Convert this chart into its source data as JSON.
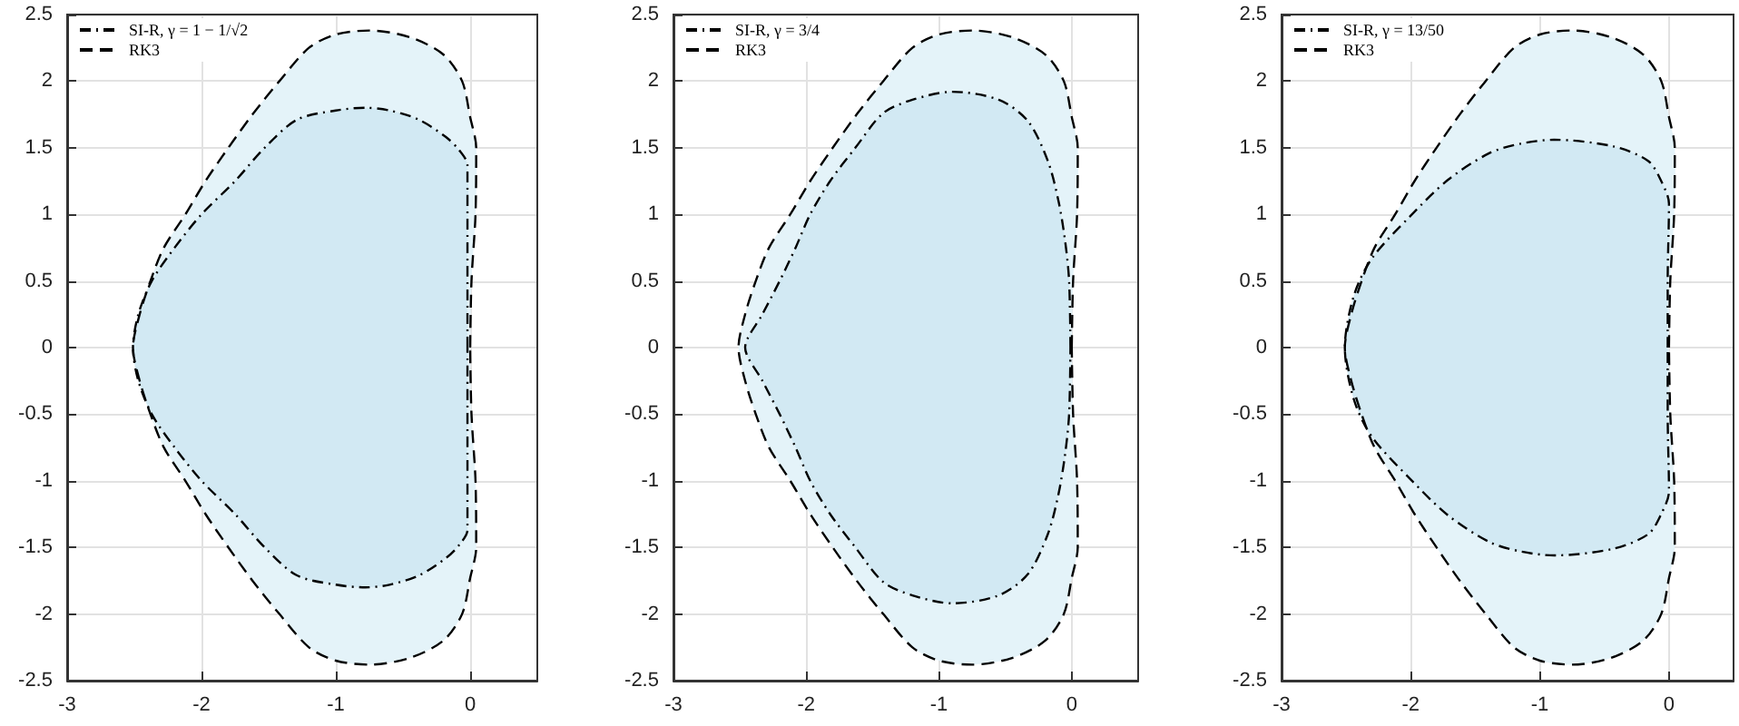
{
  "chart_data": [
    {
      "type": "line",
      "xlim": [
        -3,
        0.5
      ],
      "ylim": [
        -2.5,
        2.5
      ],
      "xticks": [
        -3,
        -2,
        -1,
        0
      ],
      "yticks": [
        -2.5,
        -2,
        -1.5,
        -1,
        -0.5,
        0,
        0.5,
        1,
        1.5,
        2,
        2.5
      ],
      "grid": true,
      "legend": "top left",
      "series": [
        {
          "name": "SI-R, γ = 1 − 1/√2",
          "type": "area",
          "color": "#d2e9f3",
          "line_style": "dashdot",
          "x": [
            -0.02,
            -0.02,
            -0.02,
            -0.08,
            -0.18,
            -0.38,
            -0.6,
            -0.78,
            -1.0,
            -1.29,
            -1.53,
            -1.75,
            -2.0,
            -2.2,
            -2.37,
            -2.47,
            -2.51,
            -2.47,
            -2.37,
            -2.2,
            -2.0,
            -1.75,
            -1.53,
            -1.29,
            -1.0,
            -0.78,
            -0.6,
            -0.38,
            -0.18,
            -0.08,
            -0.02,
            -0.02,
            -0.02
          ],
          "values": [
            0,
            0.7,
            1.37,
            1.48,
            1.58,
            1.71,
            1.78,
            1.8,
            1.78,
            1.71,
            1.5,
            1.25,
            1,
            0.75,
            0.5,
            0.25,
            0,
            -0.25,
            -0.5,
            -0.75,
            -1,
            -1.25,
            -1.5,
            -1.71,
            -1.78,
            -1.8,
            -1.78,
            -1.71,
            -1.58,
            -1.48,
            -1.37,
            -0.7,
            0
          ]
        },
        {
          "name": "RK3",
          "type": "area",
          "color": "#e4f3f9",
          "line_style": "dashed",
          "x": [
            0,
            0.01,
            0.04,
            0.045,
            0,
            -0.06,
            -0.2,
            -0.45,
            -0.75,
            -1.0,
            -1.2,
            -1.42,
            -1.62,
            -1.8,
            -1.97,
            -2.12,
            -2.28,
            -2.38,
            -2.46,
            -2.51,
            -2.46,
            -2.38,
            -2.28,
            -2.12,
            -1.97,
            -1.8,
            -1.62,
            -1.42,
            -1.2,
            -1.0,
            -0.75,
            -0.45,
            -0.2,
            -0.06,
            0,
            0.045,
            0.04,
            0.01,
            0
          ],
          "values": [
            0,
            0.5,
            1,
            1.5,
            1.73,
            2,
            2.2,
            2.33,
            2.38,
            2.35,
            2.25,
            2,
            1.75,
            1.5,
            1.25,
            1,
            0.75,
            0.5,
            0.25,
            0,
            -0.25,
            -0.5,
            -0.75,
            -1,
            -1.25,
            -1.5,
            -1.75,
            -2,
            -2.25,
            -2.35,
            -2.38,
            -2.33,
            -2.2,
            -2,
            -1.73,
            -1.5,
            -1,
            -0.5,
            0
          ]
        }
      ]
    },
    {
      "type": "line",
      "xlim": [
        -3,
        0.5
      ],
      "ylim": [
        -2.5,
        2.5
      ],
      "xticks": [
        -3,
        -2,
        -1,
        0
      ],
      "yticks": [
        -2.5,
        -2,
        -1.5,
        -1,
        -0.5,
        0,
        0.5,
        1,
        1.5,
        2,
        2.5
      ],
      "grid": true,
      "legend": "top left",
      "series": [
        {
          "name": "SI-R, γ = 3/4",
          "type": "area",
          "color": "#d2e9f3",
          "line_style": "dashdot",
          "x": [
            -0.01,
            -0.02,
            -0.05,
            -0.1,
            -0.18,
            -0.33,
            -0.55,
            -0.9,
            -1.2,
            -1.42,
            -1.63,
            -1.82,
            -1.97,
            -2.08,
            -2.2,
            -2.33,
            -2.46,
            -2.33,
            -2.2,
            -2.08,
            -1.97,
            -1.82,
            -1.63,
            -1.42,
            -1.2,
            -0.9,
            -0.55,
            -0.33,
            -0.18,
            -0.1,
            -0.05,
            -0.02,
            -0.01
          ],
          "values": [
            0,
            0.5,
            0.8,
            1.1,
            1.4,
            1.7,
            1.86,
            1.92,
            1.86,
            1.76,
            1.5,
            1.25,
            1,
            0.75,
            0.5,
            0.25,
            0,
            -0.25,
            -0.5,
            -0.75,
            -1,
            -1.25,
            -1.5,
            -1.76,
            -1.86,
            -1.92,
            -1.86,
            -1.7,
            -1.4,
            -1.1,
            -0.8,
            -0.5,
            0
          ]
        },
        {
          "name": "RK3",
          "type": "area",
          "color": "#e4f3f9",
          "line_style": "dashed",
          "x": [
            0,
            0.01,
            0.04,
            0.045,
            0,
            -0.06,
            -0.2,
            -0.45,
            -0.75,
            -1.0,
            -1.2,
            -1.42,
            -1.62,
            -1.8,
            -1.97,
            -2.12,
            -2.28,
            -2.38,
            -2.46,
            -2.51,
            -2.46,
            -2.38,
            -2.28,
            -2.12,
            -1.97,
            -1.8,
            -1.62,
            -1.42,
            -1.2,
            -1.0,
            -0.75,
            -0.45,
            -0.2,
            -0.06,
            0,
            0.045,
            0.04,
            0.01,
            0
          ],
          "values": [
            0,
            0.5,
            1,
            1.5,
            1.73,
            2,
            2.2,
            2.33,
            2.38,
            2.35,
            2.25,
            2,
            1.75,
            1.5,
            1.25,
            1,
            0.75,
            0.5,
            0.25,
            0,
            -0.25,
            -0.5,
            -0.75,
            -1,
            -1.25,
            -1.5,
            -1.75,
            -2,
            -2.25,
            -2.35,
            -2.38,
            -2.33,
            -2.2,
            -2,
            -1.73,
            -1.5,
            -1,
            -0.5,
            0
          ]
        }
      ]
    },
    {
      "type": "line",
      "xlim": [
        -3,
        0.5
      ],
      "ylim": [
        -2.5,
        2.5
      ],
      "xticks": [
        -3,
        -2,
        -1,
        0
      ],
      "yticks": [
        -2.5,
        -2,
        -1.5,
        -1,
        -0.5,
        0,
        0.5,
        1,
        1.5,
        2,
        2.5
      ],
      "grid": true,
      "legend": "top left",
      "series": [
        {
          "name": "SI-R, γ = 13/50",
          "type": "area",
          "color": "#d2e9f3",
          "line_style": "dashdot",
          "x": [
            -0.01,
            -0.01,
            0,
            -0.06,
            -0.16,
            -0.43,
            -0.89,
            -1.15,
            -1.39,
            -1.71,
            -2.0,
            -2.3,
            -2.44,
            -2.51,
            -2.44,
            -2.3,
            -2.0,
            -1.71,
            -1.39,
            -1.15,
            -0.89,
            -0.43,
            -0.16,
            -0.06,
            0,
            -0.01,
            -0.01
          ],
          "values": [
            0,
            0.5,
            1.08,
            1.25,
            1.4,
            1.51,
            1.56,
            1.53,
            1.46,
            1.26,
            0.99,
            0.67,
            0.39,
            0,
            -0.39,
            -0.67,
            -0.99,
            -1.26,
            -1.46,
            -1.53,
            -1.56,
            -1.51,
            -1.4,
            -1.25,
            -1.08,
            -0.5,
            0
          ]
        },
        {
          "name": "RK3",
          "type": "area",
          "color": "#e4f3f9",
          "line_style": "dashed",
          "x": [
            0,
            0.01,
            0.04,
            0.045,
            0,
            -0.06,
            -0.2,
            -0.45,
            -0.75,
            -1.0,
            -1.2,
            -1.42,
            -1.62,
            -1.8,
            -1.97,
            -2.12,
            -2.28,
            -2.38,
            -2.46,
            -2.51,
            -2.46,
            -2.38,
            -2.28,
            -2.12,
            -1.97,
            -1.8,
            -1.62,
            -1.42,
            -1.2,
            -1.0,
            -0.75,
            -0.45,
            -0.2,
            -0.06,
            0,
            0.045,
            0.04,
            0.01,
            0
          ],
          "values": [
            0,
            0.5,
            1,
            1.5,
            1.73,
            2,
            2.2,
            2.33,
            2.38,
            2.35,
            2.25,
            2,
            1.75,
            1.5,
            1.25,
            1,
            0.75,
            0.5,
            0.25,
            0,
            -0.25,
            -0.5,
            -0.75,
            -1,
            -1.25,
            -1.5,
            -1.75,
            -2,
            -2.25,
            -2.35,
            -2.38,
            -2.33,
            -2.2,
            -2,
            -1.73,
            -1.5,
            -1,
            -0.5,
            0
          ]
        }
      ]
    }
  ]
}
